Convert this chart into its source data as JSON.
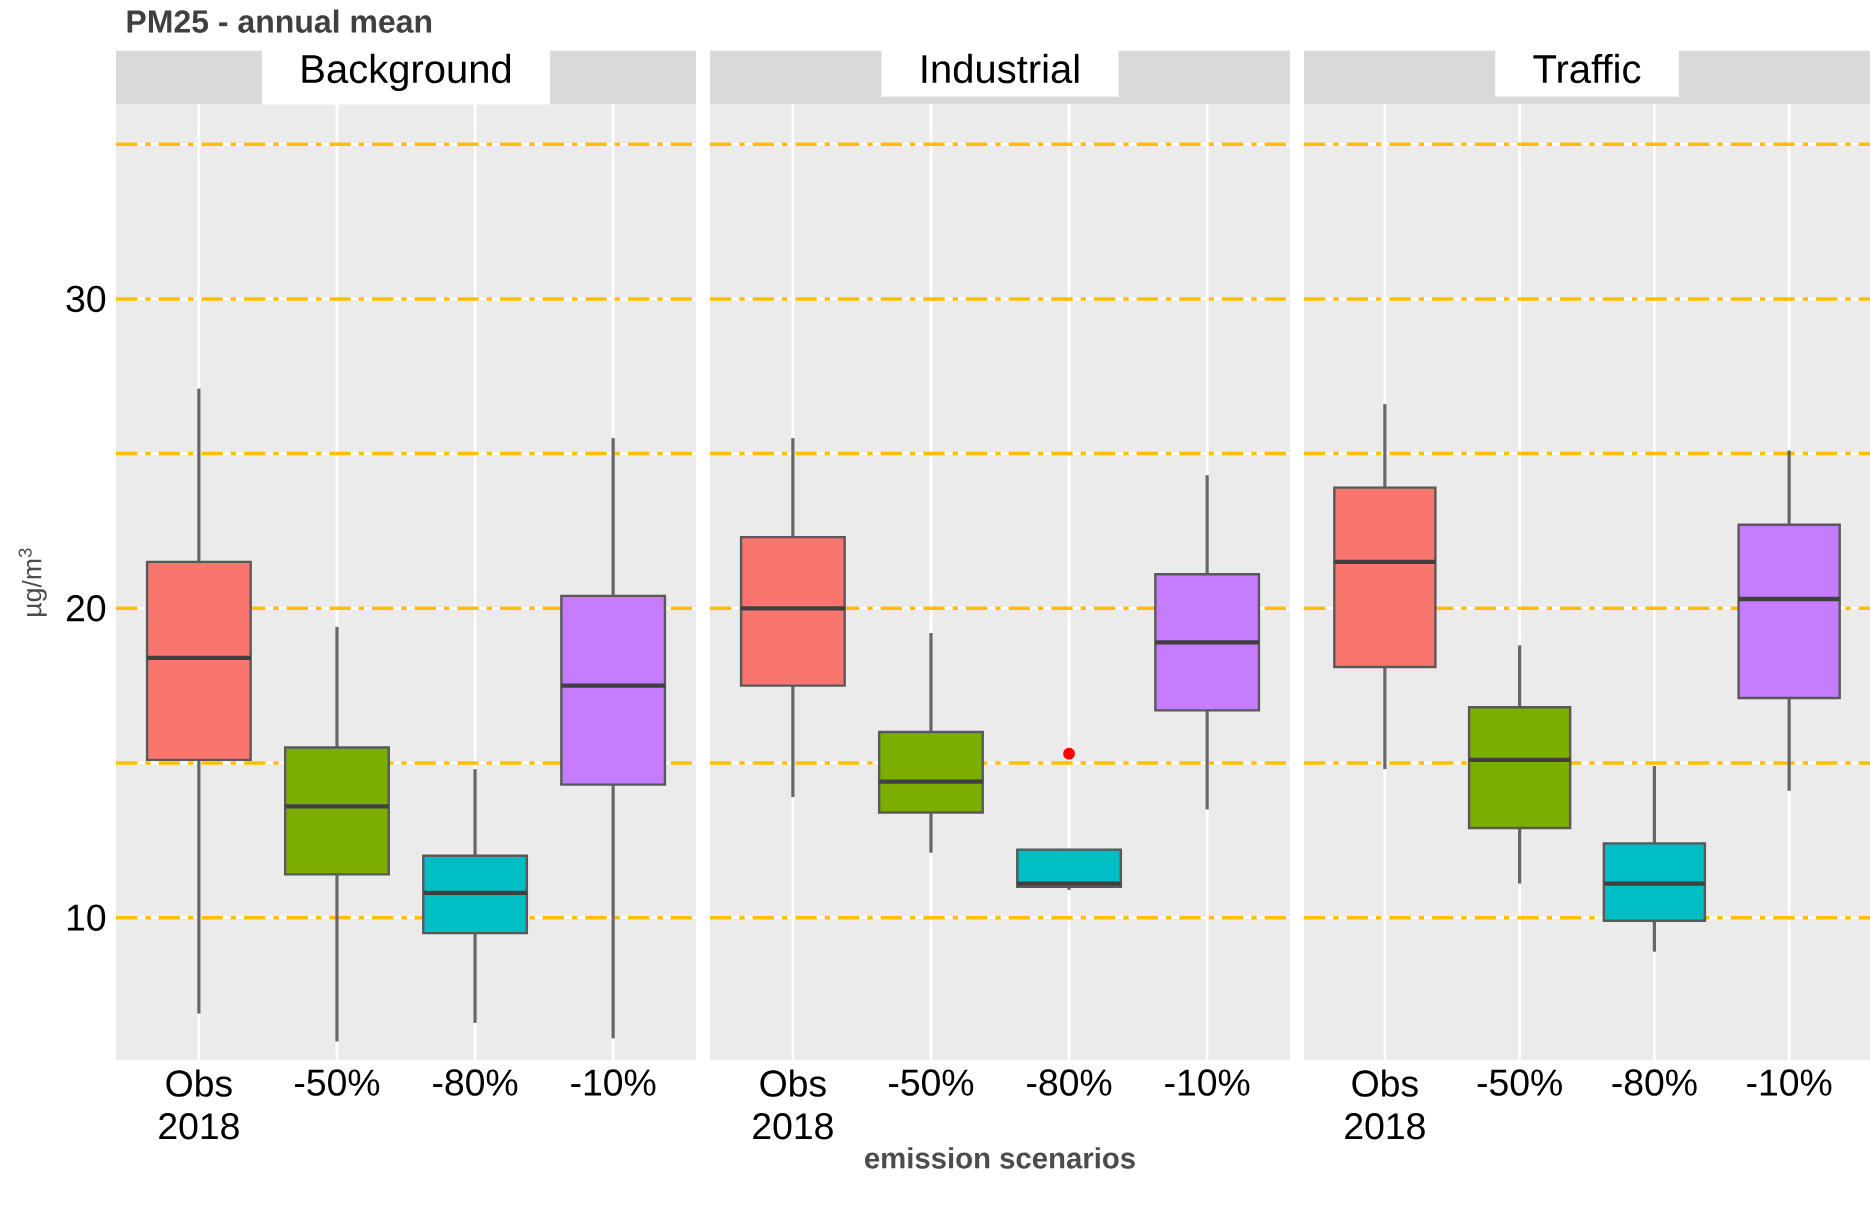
{
  "chart_data": [
    {
      "type": "box",
      "title": "PM25 - annual mean",
      "subtitle": "Background",
      "ylabel": "µg/m$^{3}$",
      "categories": [
        "Obs 2018",
        "-50%",
        "-80%",
        "-10%"
      ],
      "colors": [
        "#f8766d",
        "#7cae00",
        "#00bfc4",
        "#c77cff"
      ],
      "boxes": [
        {
          "low": 6.9,
          "q1": 15.1,
          "median": 18.4,
          "q3": 21.5,
          "high": 27.1
        },
        {
          "low": 6.0,
          "q1": 11.4,
          "median": 13.6,
          "q3": 15.5,
          "high": 19.4
        },
        {
          "low": 6.6,
          "q1": 9.5,
          "median": 10.8,
          "q3": 12.0,
          "high": 14.8
        },
        {
          "low": 6.1,
          "q1": 14.3,
          "median": 17.5,
          "q3": 20.4,
          "high": 25.5
        }
      ],
      "ylim": [
        5.4,
        36.3
      ],
      "yticks": [
        10,
        {
          "value": 15,
          "label": null
        },
        20,
        {
          "value": 25,
          "label": null
        },
        30,
        {
          "value": 35,
          "label": null
        }
      ],
      "grid": true
    },
    {
      "type": "box",
      "subtitle": "Industrial",
      "xlabel": "emission scenarios",
      "categories": [
        "Obs 2018",
        "-50%",
        "-80%",
        "-10%"
      ],
      "colors": [
        "#f8766d",
        "#7cae00",
        "#00bfc4",
        "#c77cff"
      ],
      "boxes": [
        {
          "low": 13.9,
          "q1": 17.5,
          "median": 20.0,
          "q3": 22.3,
          "high": 25.5
        },
        {
          "low": 12.1,
          "q1": 13.4,
          "median": 14.4,
          "q3": 16.0,
          "high": 19.2
        },
        {
          "low": 10.9,
          "q1": 11.0,
          "median": 11.1,
          "q3": 12.2,
          "high": 12.2,
          "outliers": [
            15.3
          ]
        },
        {
          "low": 13.5,
          "q1": 16.7,
          "median": 18.9,
          "q3": 21.1,
          "high": 24.3
        }
      ],
      "ylim": [
        5.4,
        36.3
      ],
      "yticks": [
        10,
        {
          "value": 15,
          "label": null
        },
        20,
        {
          "value": 25,
          "label": null
        },
        30,
        {
          "value": 35,
          "label": null
        }
      ],
      "grid": true,
      "tick_labels": "x"
    },
    {
      "type": "box",
      "subtitle": "Traffic",
      "categories": [
        "Obs 2018",
        "-50%",
        "-80%",
        "-10%"
      ],
      "colors": [
        "#f8766d",
        "#7cae00",
        "#00bfc4",
        "#c77cff"
      ],
      "boxes": [
        {
          "low": 14.8,
          "q1": 18.1,
          "median": 21.5,
          "q3": 23.9,
          "high": 26.6
        },
        {
          "low": 11.1,
          "q1": 12.9,
          "median": 15.1,
          "q3": 16.8,
          "high": 18.8
        },
        {
          "low": 8.9,
          "q1": 9.9,
          "median": 11.1,
          "q3": 12.4,
          "high": 14.9
        },
        {
          "low": 14.1,
          "q1": 17.1,
          "median": 20.3,
          "q3": 22.7,
          "high": 25.1
        }
      ],
      "ylim": [
        5.4,
        36.3
      ],
      "yticks": [
        10,
        {
          "value": 15,
          "label": null
        },
        20,
        {
          "value": 25,
          "label": null
        },
        30,
        {
          "value": 35,
          "label": null
        }
      ],
      "grid": true,
      "tick_labels": "x"
    }
  ]
}
